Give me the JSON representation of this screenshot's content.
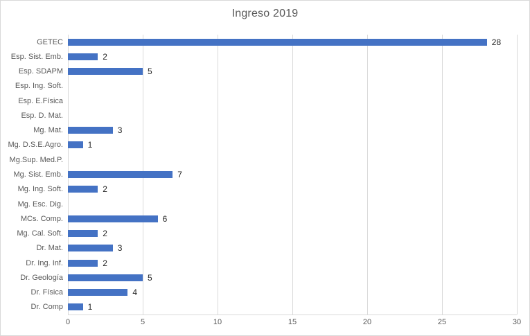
{
  "chart_data": {
    "type": "bar",
    "orientation": "horizontal",
    "title": "Ingreso 2019",
    "categories": [
      "GETEC",
      "Esp. Sist. Emb.",
      "Esp. SDAPM",
      "Esp. Ing. Soft.",
      "Esp. E.Física",
      "Esp. D. Mat.",
      "Mg. Mat.",
      "Mg. D.S.E.Agro.",
      "Mg.Sup. Med.P.",
      "Mg. Sist. Emb.",
      "Mg. Ing. Soft.",
      "Mg. Esc. Dig.",
      "MCs. Comp.",
      "Mg. Cal. Soft.",
      "Dr. Mat.",
      "Dr. Ing. Inf.",
      "Dr. Geología",
      "Dr. Física",
      "Dr. Comp"
    ],
    "values": [
      28,
      2,
      5,
      0,
      0,
      0,
      3,
      1,
      0,
      7,
      2,
      0,
      6,
      2,
      3,
      2,
      5,
      4,
      1
    ],
    "xlabel": "",
    "ylabel": "",
    "xlim": [
      0,
      30
    ],
    "x_ticks": [
      0,
      5,
      10,
      15,
      20,
      25,
      30
    ],
    "grid": true,
    "legend": "none",
    "data_labels": "shown for nonzero values"
  },
  "style": {
    "bar_color": "#4472c4",
    "gridline_color": "#d9d9d9",
    "border_color": "#d9d9d9",
    "axis_text_color": "#595959",
    "title_color": "#595959",
    "value_label_color": "#262626",
    "background_color": "#ffffff"
  }
}
